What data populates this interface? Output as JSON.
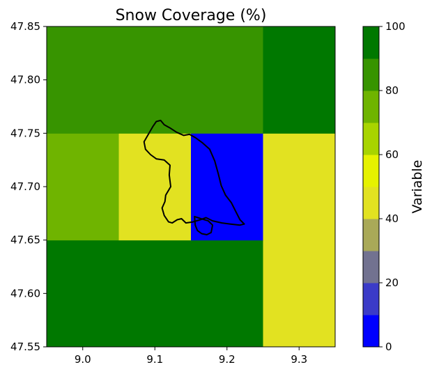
{
  "chart_data": {
    "type": "heatmap",
    "title": "Snow Coverage (%)",
    "x_edges": [
      8.95,
      9.05,
      9.15,
      9.25,
      9.35
    ],
    "y_edges": [
      47.55,
      47.65,
      47.75,
      47.85
    ],
    "xlim": [
      8.95,
      9.35
    ],
    "ylim": [
      47.55,
      47.85
    ],
    "x_ticks": [
      "9.0",
      "9.1",
      "9.2",
      "9.3"
    ],
    "x_tick_values": [
      9.0,
      9.1,
      9.2,
      9.3
    ],
    "y_ticks": [
      "47.55",
      "47.60",
      "47.65",
      "47.70",
      "47.75",
      "47.80",
      "47.85"
    ],
    "y_tick_values": [
      47.55,
      47.6,
      47.65,
      47.7,
      47.75,
      47.8,
      47.85
    ],
    "values": [
      [
        95,
        95,
        95,
        45
      ],
      [
        75,
        45,
        5,
        45
      ],
      [
        85,
        85,
        85,
        95
      ]
    ],
    "colorbar": {
      "label": "Variable",
      "range": [
        0,
        100
      ],
      "levels": [
        0,
        10,
        20,
        30,
        40,
        50,
        60,
        70,
        80,
        90,
        100
      ],
      "colors": [
        "#0000ff",
        "#3b3bc8",
        "#727290",
        "#a9a958",
        "#e2e221",
        "#e6f200",
        "#a8d400",
        "#6fb400",
        "#379400",
        "#007800"
      ],
      "ticks": [
        "0",
        "20",
        "40",
        "60",
        "80",
        "100"
      ],
      "tick_values": [
        0,
        20,
        40,
        60,
        80,
        100
      ]
    },
    "grid": false,
    "outline": {
      "color": "#000000",
      "points": [
        [
          9.085,
          47.742
        ],
        [
          9.097,
          47.756
        ],
        [
          9.102,
          47.761
        ],
        [
          9.108,
          47.762
        ],
        [
          9.113,
          47.758
        ],
        [
          9.121,
          47.755
        ],
        [
          9.13,
          47.751
        ],
        [
          9.14,
          47.748
        ],
        [
          9.148,
          47.749
        ],
        [
          9.156,
          47.746
        ],
        [
          9.166,
          47.741
        ],
        [
          9.176,
          47.735
        ],
        [
          9.183,
          47.724
        ],
        [
          9.188,
          47.712
        ],
        [
          9.192,
          47.701
        ],
        [
          9.198,
          47.692
        ],
        [
          9.206,
          47.685
        ],
        [
          9.212,
          47.677
        ],
        [
          9.218,
          47.669
        ],
        [
          9.224,
          47.665
        ],
        [
          9.218,
          47.664
        ],
        [
          9.205,
          47.665
        ],
        [
          9.193,
          47.666
        ],
        [
          9.18,
          47.668
        ],
        [
          9.171,
          47.671
        ],
        [
          9.163,
          47.669
        ],
        [
          9.153,
          47.667
        ],
        [
          9.143,
          47.666
        ],
        [
          9.137,
          47.67
        ],
        [
          9.131,
          47.669
        ],
        [
          9.124,
          47.666
        ],
        [
          9.119,
          47.667
        ],
        [
          9.113,
          47.673
        ],
        [
          9.11,
          47.68
        ],
        [
          9.114,
          47.686
        ],
        [
          9.115,
          47.692
        ],
        [
          9.122,
          47.7
        ],
        [
          9.12,
          47.711
        ],
        [
          9.121,
          47.72
        ],
        [
          9.113,
          47.725
        ],
        [
          9.102,
          47.726
        ],
        [
          9.094,
          47.73
        ],
        [
          9.087,
          47.735
        ],
        [
          9.085,
          47.742
        ]
      ]
    },
    "inset_outline": {
      "color": "#000000",
      "points": [
        [
          9.155,
          47.672
        ],
        [
          9.164,
          47.67
        ],
        [
          9.174,
          47.668
        ],
        [
          9.18,
          47.664
        ],
        [
          9.178,
          47.657
        ],
        [
          9.172,
          47.655
        ],
        [
          9.165,
          47.656
        ],
        [
          9.159,
          47.659
        ],
        [
          9.156,
          47.664
        ],
        [
          9.155,
          47.672
        ]
      ]
    }
  }
}
